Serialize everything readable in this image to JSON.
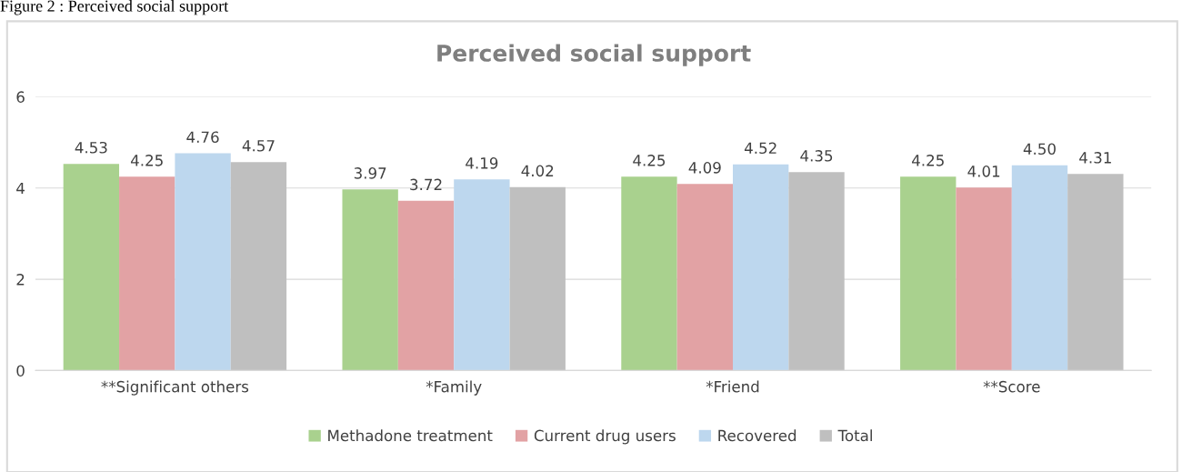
{
  "chart_data": {
    "type": "bar",
    "title": "Perceived social support",
    "annotations": [
      "Figure 2 : Perceived social support"
    ],
    "categories": [
      "**Significant others",
      "*Family",
      "*Friend",
      "**Score"
    ],
    "series": [
      {
        "name": "Methadone treatment",
        "color": "#a9d18e",
        "values": [
          4.53,
          3.97,
          4.25,
          4.25
        ]
      },
      {
        "name": "Current drug users",
        "color": "#e2a2a4",
        "values": [
          4.25,
          3.72,
          4.09,
          4.01
        ]
      },
      {
        "name": "Recovered",
        "color": "#bdd7ee",
        "values": [
          4.76,
          4.19,
          4.52,
          4.5
        ]
      },
      {
        "name": "Total",
        "color": "#bfbfbf",
        "values": [
          4.57,
          4.02,
          4.35,
          4.31
        ]
      }
    ],
    "value_labels": [
      [
        "4.53",
        "3.97",
        "4.25",
        "4.25"
      ],
      [
        "4.25",
        "3.72",
        "4.09",
        "4.01"
      ],
      [
        "4.76",
        "4.19",
        "4.52",
        "4.50"
      ],
      [
        "4.57",
        "4.02",
        "4.35",
        "4.31"
      ]
    ],
    "ylim": [
      0,
      6
    ],
    "yticks": [
      0,
      2,
      4,
      6
    ],
    "grid": "y",
    "legend": "bottom"
  }
}
